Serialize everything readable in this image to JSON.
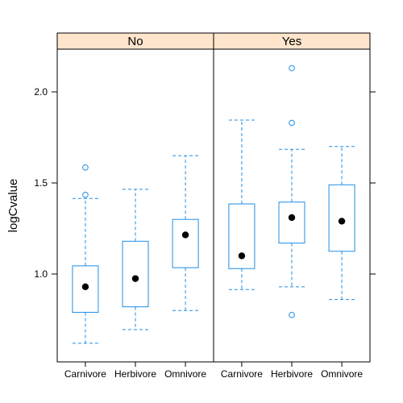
{
  "chart_data": {
    "type": "box",
    "ylabel": "logCvalue",
    "yticks": [
      1.0,
      1.5,
      2.0
    ],
    "ytick_labels": [
      "1.0",
      "1.5",
      "2.0"
    ],
    "ylim": [
      0.56,
      2.23
    ],
    "categories": [
      "Carnivore",
      "Herbivore",
      "Omnivore"
    ],
    "colors": {
      "box": "#1f8fe6",
      "strip": "#ffe5cc",
      "median": "#000000",
      "frame": "#000000"
    },
    "panels": [
      {
        "strip_label": "No",
        "boxes": [
          {
            "category": "Carnivore",
            "whisker_low": 0.62,
            "q1": 0.79,
            "median": 0.93,
            "q3": 1.045,
            "whisker_high": 1.415,
            "outliers": [
              1.435,
              1.585
            ]
          },
          {
            "category": "Herbivore",
            "whisker_low": 0.695,
            "q1": 0.82,
            "median": 0.975,
            "q3": 1.18,
            "whisker_high": 1.465,
            "outliers": []
          },
          {
            "category": "Omnivore",
            "whisker_low": 0.8,
            "q1": 1.035,
            "median": 1.215,
            "q3": 1.3,
            "whisker_high": 1.65,
            "outliers": []
          }
        ]
      },
      {
        "strip_label": "Yes",
        "boxes": [
          {
            "category": "Carnivore",
            "whisker_low": 0.915,
            "q1": 1.03,
            "median": 1.1,
            "q3": 1.385,
            "whisker_high": 1.845,
            "outliers": []
          },
          {
            "category": "Herbivore",
            "whisker_low": 0.93,
            "q1": 1.17,
            "median": 1.31,
            "q3": 1.395,
            "whisker_high": 1.685,
            "outliers": [
              0.775,
              1.83,
              2.13
            ]
          },
          {
            "category": "Omnivore",
            "whisker_low": 0.86,
            "q1": 1.125,
            "median": 1.29,
            "q3": 1.49,
            "whisker_high": 1.7,
            "outliers": []
          }
        ]
      }
    ]
  }
}
